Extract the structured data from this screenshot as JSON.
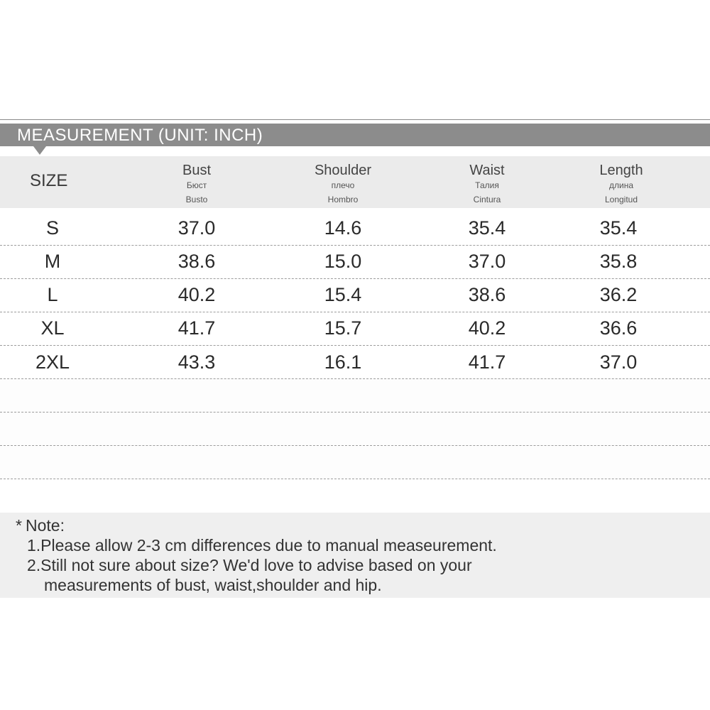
{
  "title": "MEASUREMENT (UNIT: INCH)",
  "table": {
    "size_header": "SIZE",
    "columns": [
      {
        "en": "Bust",
        "ru": "Бюст",
        "es": "Busto"
      },
      {
        "en": "Shoulder",
        "ru": "плечо",
        "es": "Hombro"
      },
      {
        "en": "Waist",
        "ru": "Талия",
        "es": "Cintura"
      },
      {
        "en": "Length",
        "ru": "длина",
        "es": "Longitud"
      }
    ],
    "rows": [
      {
        "size": "S",
        "values": [
          "37.0",
          "14.6",
          "35.4",
          "35.4"
        ]
      },
      {
        "size": "M",
        "values": [
          "38.6",
          "15.0",
          "37.0",
          "35.8"
        ]
      },
      {
        "size": "L",
        "values": [
          "40.2",
          "15.4",
          "38.6",
          "36.2"
        ]
      },
      {
        "size": "XL",
        "values": [
          "41.7",
          "15.7",
          "40.2",
          "36.6"
        ]
      },
      {
        "size": "2XL",
        "values": [
          "43.3",
          "16.1",
          "41.7",
          "37.0"
        ]
      }
    ]
  },
  "note": {
    "marker": "*",
    "heading": "Note:",
    "items": [
      "1.Please allow 2-3 cm differences due to manual measeurement.",
      "2.Still not sure about size? We'd love to advise based on your",
      "measurements of bust, waist,shoulder and hip."
    ]
  },
  "colors": {
    "title_bar": "#8c8c8c",
    "header_band": "#ebebeb",
    "note_box": "#efefef"
  }
}
